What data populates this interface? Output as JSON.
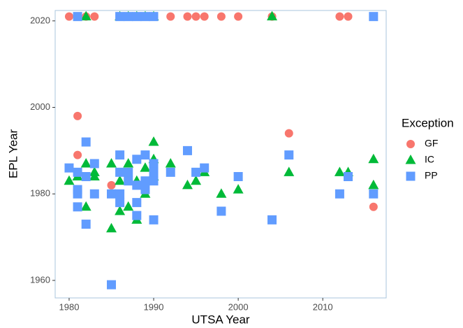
{
  "chart_data": {
    "type": "scatter",
    "x_label": "UTSA Year",
    "y_label": "EPL Year",
    "xlim": [
      1978.35,
      2017.5
    ],
    "ylim": [
      1955.95,
      2022.4
    ],
    "xticks": [
      1980,
      1990,
      2000,
      2010
    ],
    "yticks": [
      1960,
      1980,
      2000,
      2020
    ],
    "legend_title": "Exception",
    "legend": "right",
    "series": [
      {
        "name": "GF",
        "color": "#F8766D",
        "marker": "circle",
        "x": [
          1980,
          1981,
          1982,
          1983,
          1992,
          1994,
          1995,
          1996,
          1998,
          2000,
          2004,
          2012,
          2013,
          1981,
          1981,
          1985,
          2006,
          2016
        ],
        "values": [
          2021,
          2021,
          2021,
          2021,
          2021,
          2021,
          2021,
          2021,
          2021,
          2021,
          2021,
          2021,
          2021,
          1998,
          1989,
          1982,
          1994,
          1977
        ]
      },
      {
        "name": "IC",
        "color": "#00BA38",
        "marker": "triangle",
        "x": [
          1982,
          1986,
          1987,
          1988,
          1989,
          1990,
          2004,
          1980,
          1981,
          1982,
          1982,
          1983,
          1983,
          1985,
          1985,
          1986,
          1986,
          1987,
          1987,
          1988,
          1988,
          1989,
          1989,
          1990,
          1990,
          1990,
          1992,
          1994,
          1995,
          1996,
          1998,
          2000,
          2006,
          2012,
          2013,
          2016,
          2016
        ],
        "values": [
          2021,
          2021,
          2021,
          2021,
          2021,
          2021,
          2021,
          1983,
          1984,
          1987,
          1977,
          1985,
          1984,
          1987,
          1972,
          1983,
          1976,
          1987,
          1977,
          1983,
          1974,
          1986,
          1980,
          1992,
          1988,
          1984,
          1987,
          1982,
          1983,
          1985,
          1980,
          1981,
          1985,
          1985,
          1985,
          1988,
          1982
        ]
      },
      {
        "name": "PP",
        "color": "#619CFF",
        "marker": "square",
        "x": [
          1981,
          1986,
          1987,
          1988,
          1989,
          1990,
          2016,
          1980,
          1981,
          1981,
          1981,
          1981,
          1982,
          1982,
          1982,
          1983,
          1983,
          1985,
          1985,
          1986,
          1986,
          1986,
          1986,
          1987,
          1987,
          1988,
          1988,
          1988,
          1988,
          1989,
          1989,
          1989,
          1990,
          1990,
          1990,
          1990,
          1992,
          1994,
          1995,
          1996,
          1998,
          2000,
          2004,
          2006,
          2012,
          2013,
          2016
        ],
        "values": [
          2021,
          2021,
          2021,
          2021,
          2021,
          2021,
          2021,
          1986,
          1985,
          1981,
          1980,
          1977,
          1992,
          1984,
          1973,
          1987,
          1980,
          1980,
          1959,
          1989,
          1985,
          1980,
          1978,
          1985,
          1983,
          1988,
          1982,
          1978,
          1975,
          1989,
          1983,
          1981,
          1987,
          1985,
          1983,
          1974,
          1985,
          1990,
          1985,
          1986,
          1976,
          1984,
          1974,
          1989,
          1980,
          1984,
          1980
        ]
      }
    ]
  }
}
